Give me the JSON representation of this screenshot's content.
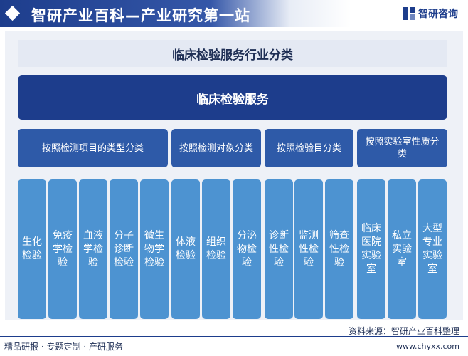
{
  "header": {
    "title": "智研产业百科—产业研究第一站",
    "logo_text": "智研咨询",
    "logo_icon": "zhiyan-logo-icon"
  },
  "diagram": {
    "title": "临床检验服务行业分类",
    "root": "临床检验服务",
    "categories": [
      {
        "label": "按照检测项目的类型分类",
        "leaves": [
          "生化检验",
          "免疫学检验",
          "血液学检验",
          "分子诊断检验",
          "微生物学检验"
        ]
      },
      {
        "label": "按照检测对象分类",
        "leaves": [
          "体液检验",
          "组织检验",
          "分泌物检验"
        ]
      },
      {
        "label": "按照检验目分类",
        "leaves": [
          "诊断性检验",
          "监测性检验",
          "筛查性检验"
        ]
      },
      {
        "label": "按照实验室性质分类",
        "leaves": [
          "临床医院实验室",
          "私立实验室",
          "大型专业实验室"
        ]
      }
    ]
  },
  "footer": {
    "source": "资料来源：智研产业百科整理",
    "left": "精品研报 · 专题定制 · 产研服务",
    "right": "www.chyxx.com"
  },
  "colors": {
    "root": "#1d3d8c",
    "category": "#2e5aa8",
    "leaf": "#4d93d1"
  }
}
